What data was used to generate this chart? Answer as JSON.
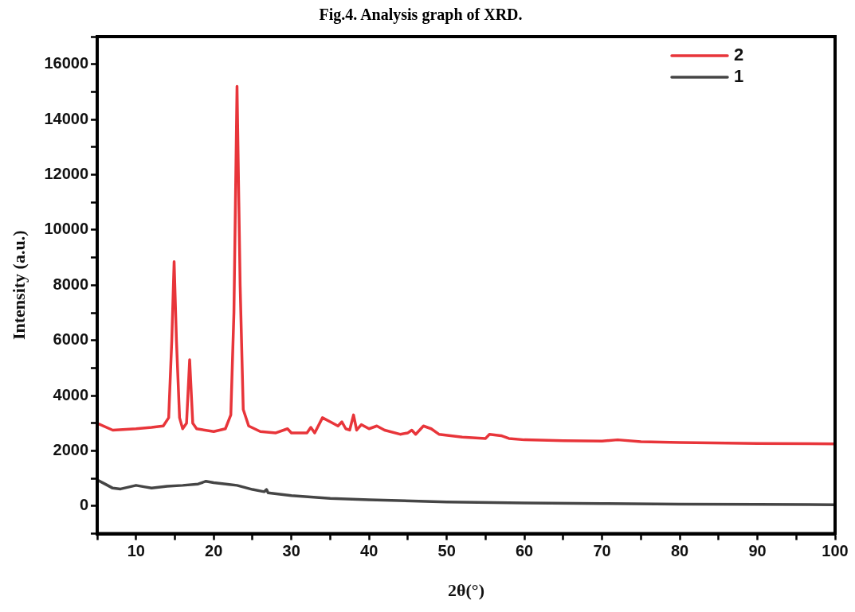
{
  "chart_data": {
    "type": "line",
    "title": "Fig.4. Analysis graph of XRD.",
    "xlabel": "2θ(°)",
    "ylabel": "Intensity (a.u.)",
    "xlim": [
      5,
      100
    ],
    "ylim": [
      -1000,
      17000
    ],
    "xticks": [
      {
        "value": 5,
        "label": null
      },
      10,
      {
        "value": 15,
        "label": null
      },
      20,
      {
        "value": 25,
        "label": null
      },
      30,
      {
        "value": 35,
        "label": null
      },
      40,
      {
        "value": 45,
        "label": null
      },
      50,
      {
        "value": 55,
        "label": null
      },
      60,
      {
        "value": 65,
        "label": null
      },
      70,
      {
        "value": 75,
        "label": null
      },
      80,
      {
        "value": 85,
        "label": null
      },
      90,
      {
        "value": 95,
        "label": null
      },
      100
    ],
    "yticks": [
      {
        "value": -1000,
        "label": null
      },
      0,
      {
        "value": 1000,
        "label": null
      },
      2000,
      {
        "value": 3000,
        "label": null
      },
      4000,
      {
        "value": 5000,
        "label": null
      },
      6000,
      {
        "value": 7000,
        "label": null
      },
      8000,
      {
        "value": 9000,
        "label": null
      },
      10000,
      {
        "value": 11000,
        "label": null
      },
      12000,
      {
        "value": 13000,
        "label": null
      },
      14000,
      {
        "value": 15000,
        "label": null
      },
      16000,
      {
        "value": 17000,
        "label": null
      }
    ],
    "grid": false,
    "legend": "top right",
    "series": [
      {
        "name": "2",
        "color": "#e8353a",
        "x": [
          5,
          7,
          10,
          12,
          13.5,
          14.2,
          14.6,
          14.9,
          15.2,
          15.6,
          16,
          16.5,
          16.9,
          17.3,
          17.8,
          20,
          21.5,
          22.2,
          22.6,
          23,
          23.4,
          23.8,
          24.5,
          26,
          28,
          29.5,
          30,
          32,
          32.5,
          33,
          34,
          35,
          36,
          36.5,
          37,
          37.5,
          38,
          38.4,
          39,
          40,
          41,
          42,
          44,
          45,
          45.5,
          46,
          47,
          48,
          49,
          52,
          55,
          55.5,
          57,
          58,
          60,
          65,
          70,
          72,
          75,
          80,
          90,
          100
        ],
        "values": [
          3000,
          2750,
          2800,
          2850,
          2900,
          3200,
          6000,
          8850,
          6000,
          3200,
          2800,
          3000,
          5300,
          3000,
          2800,
          2700,
          2800,
          3300,
          7000,
          15200,
          8000,
          3500,
          2900,
          2700,
          2650,
          2800,
          2650,
          2650,
          2850,
          2650,
          3200,
          3050,
          2900,
          3050,
          2800,
          2750,
          3300,
          2750,
          2950,
          2800,
          2900,
          2750,
          2600,
          2650,
          2750,
          2600,
          2900,
          2800,
          2600,
          2500,
          2450,
          2600,
          2550,
          2450,
          2400,
          2370,
          2350,
          2400,
          2330,
          2300,
          2270,
          2250
        ]
      },
      {
        "name": "1",
        "color": "#454545",
        "x": [
          5,
          6,
          7,
          8,
          10,
          11,
          12,
          14,
          16,
          18,
          19,
          20,
          22,
          23,
          25,
          26.5,
          26.8,
          27,
          30,
          35,
          40,
          50,
          60,
          70,
          80,
          90,
          100
        ],
        "values": [
          950,
          800,
          650,
          620,
          750,
          700,
          650,
          720,
          750,
          800,
          900,
          850,
          780,
          750,
          600,
          520,
          600,
          480,
          380,
          280,
          230,
          150,
          110,
          90,
          70,
          60,
          50
        ]
      }
    ]
  }
}
